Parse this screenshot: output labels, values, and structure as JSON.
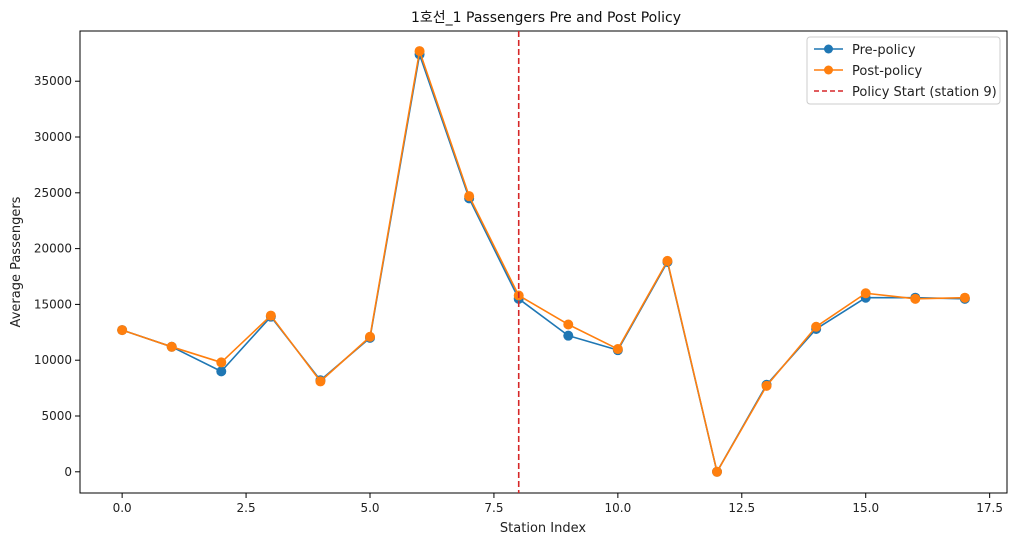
{
  "chart_data": {
    "type": "line",
    "title": "1호선_1 Passengers Pre and Post Policy",
    "xlabel": "Station Index",
    "ylabel": "Average Passengers",
    "xlim": [
      -0.85,
      17.85
    ],
    "ylim": [
      -1900,
      39500
    ],
    "xticks": [
      0.0,
      2.5,
      5.0,
      7.5,
      10.0,
      12.5,
      15.0,
      17.5
    ],
    "xtick_labels": [
      "0.0",
      "2.5",
      "5.0",
      "7.5",
      "10.0",
      "12.5",
      "15.0",
      "17.5"
    ],
    "yticks": [
      0,
      5000,
      10000,
      15000,
      20000,
      25000,
      30000,
      35000
    ],
    "ytick_labels": [
      "0",
      "5000",
      "10000",
      "15000",
      "20000",
      "25000",
      "30000",
      "35000"
    ],
    "grid": false,
    "legend_position": "top-right",
    "x": [
      0,
      1,
      2,
      3,
      4,
      5,
      6,
      7,
      8,
      9,
      10,
      11,
      12,
      13,
      14,
      15,
      16,
      17
    ],
    "series": [
      {
        "name": "Pre-policy",
        "color": "#1f77b4",
        "marker": "circle",
        "values": [
          12700,
          11200,
          9000,
          13900,
          8200,
          12000,
          37400,
          24500,
          15500,
          12200,
          10900,
          18800,
          0,
          7800,
          12800,
          15600,
          15600,
          15500
        ]
      },
      {
        "name": "Post-policy",
        "color": "#ff7f0e",
        "marker": "circle",
        "values": [
          12700,
          11200,
          9800,
          14000,
          8100,
          12100,
          37700,
          24700,
          15800,
          13200,
          11000,
          18900,
          0,
          7700,
          13000,
          16000,
          15500,
          15600
        ]
      }
    ],
    "vline": {
      "label": "Policy Start (station 9)",
      "x": 8,
      "color": "#d62728",
      "style": "dashed"
    }
  }
}
